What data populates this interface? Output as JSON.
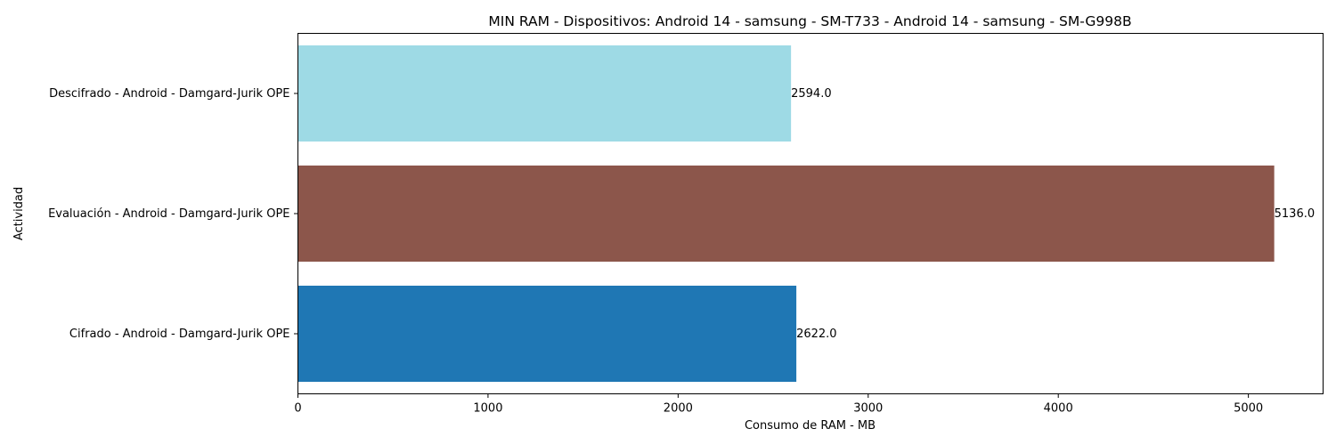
{
  "chart_data": {
    "type": "bar",
    "orientation": "horizontal",
    "title": "MIN RAM - Dispositivos: Android 14 - samsung - SM-T733 - Android 14 - samsung - SM-G998B",
    "xlabel": "Consumo de RAM - MB",
    "ylabel": "Actividad",
    "xlim": [
      0,
      5393
    ],
    "xticks": [
      0,
      1000,
      2000,
      3000,
      4000,
      5000
    ],
    "xtick_labels": [
      "0",
      "1000",
      "2000",
      "3000",
      "4000",
      "5000"
    ],
    "categories": [
      "Cifrado - Android - Damgard-Jurik OPE",
      "Evaluación - Android - Damgard-Jurik OPE",
      "Descifrado - Android - Damgard-Jurik OPE"
    ],
    "values": [
      2622.0,
      5136.0,
      2594.0
    ],
    "value_labels": [
      "2622.0",
      "5136.0",
      "2594.0"
    ],
    "colors": [
      "#1f77b4",
      "#8c564b",
      "#9edae5"
    ],
    "grid": false,
    "legend": null
  }
}
